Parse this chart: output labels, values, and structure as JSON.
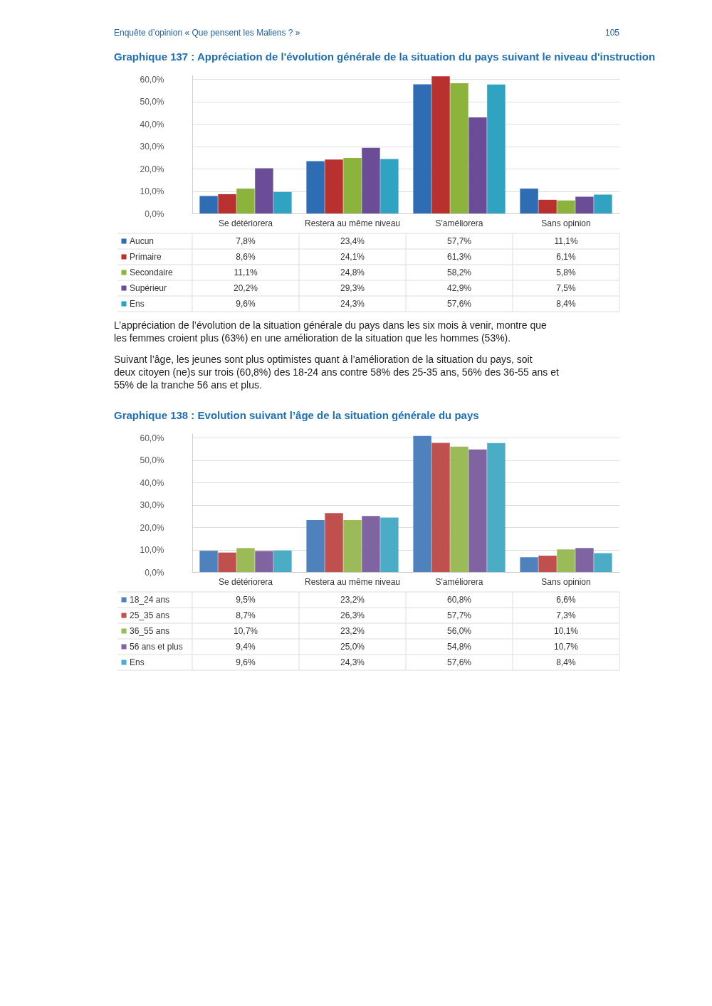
{
  "chart_data": [
    {
      "type": "bar",
      "title": "Graphique 137 : Appréciation de l'évolution générale de la situation du pays suivant le niveau d'instruction",
      "annotations": [
        "Enquête d’opinion « Que pensent les Maliens ? »",
        "105"
      ],
      "categories": [
        "Se détériorera",
        "Restera au même niveau",
        "S'améliorera",
        "Sans opinion"
      ],
      "series": [
        {
          "name": "Aucun",
          "color": "#2e6db4",
          "values": [
            7.8,
            23.4,
            57.7,
            11.1
          ],
          "value_labels": [
            "7,8%",
            "23,4%",
            "57,7%",
            "11,1%"
          ]
        },
        {
          "name": "Primaire",
          "color": "#b8312f",
          "values": [
            8.6,
            24.1,
            61.3,
            6.1
          ],
          "value_labels": [
            "8,6%",
            "24,1%",
            "61,3%",
            "6,1%"
          ]
        },
        {
          "name": "Secondaire",
          "color": "#8cb43c",
          "values": [
            11.1,
            24.8,
            58.2,
            5.8
          ],
          "value_labels": [
            "11,1%",
            "24,8%",
            "58,2%",
            "5,8%"
          ]
        },
        {
          "name": "Supérieur",
          "color": "#6b4c96",
          "values": [
            20.2,
            29.3,
            42.9,
            7.5
          ],
          "value_labels": [
            "20,2%",
            "29,3%",
            "42,9%",
            "7,5%"
          ]
        },
        {
          "name": "Ens",
          "color": "#30a3c2",
          "values": [
            9.6,
            24.3,
            57.6,
            8.4
          ],
          "value_labels": [
            "9,6%",
            "24,3%",
            "57,6%",
            "8,4%"
          ]
        }
      ],
      "ylim": [
        0,
        62
      ],
      "yticks": [
        {
          "value": 0,
          "label": "0,0%"
        },
        {
          "value": 10,
          "label": "10,0%"
        },
        {
          "value": 20,
          "label": "20,0%"
        },
        {
          "value": 30,
          "label": "30,0%"
        },
        {
          "value": 40,
          "label": "40,0%"
        },
        {
          "value": 50,
          "label": "50,0%"
        },
        {
          "value": 60,
          "label": "60,0%"
        }
      ],
      "grid": "y",
      "legend": "bottom"
    },
    {
      "type": "bar",
      "title": "Graphique 138 : Evolution suivant l’âge de la situation générale du pays",
      "annotations": [
        "L’appréciation de l’évolution de la situation générale du pays dans les six mois à venir, montre que les femmes croient plus (63%) en une amélioration de la situation que les hommes (53%).",
        "Suivant l’âge, les jeunes sont plus optimistes quant à l’amélioration de la situation du pays, soit deux citoyen (ne)s sur trois (60,8%) des 18-24 ans contre 58% des 25-35 ans, 56% des 36-55 ans et 55% de la tranche 56 ans et plus."
      ],
      "categories": [
        "Se détériorera",
        "Restera au même niveau",
        "S'améliorera",
        "Sans opinion"
      ],
      "series": [
        {
          "name": "18_24 ans",
          "color": "#4f81bd",
          "values": [
            9.5,
            23.2,
            60.8,
            6.6
          ],
          "value_labels": [
            "9,5%",
            "23,2%",
            "60,8%",
            "6,6%"
          ]
        },
        {
          "name": "25_35 ans",
          "color": "#c0504d",
          "values": [
            8.7,
            26.3,
            57.7,
            7.3
          ],
          "value_labels": [
            "8,7%",
            "26,3%",
            "57,7%",
            "7,3%"
          ]
        },
        {
          "name": "36_55 ans",
          "color": "#9bbb59",
          "values": [
            10.7,
            23.2,
            56.0,
            10.1
          ],
          "value_labels": [
            "10,7%",
            "23,2%",
            "56,0%",
            "10,1%"
          ]
        },
        {
          "name": "56 ans et plus",
          "color": "#8064a2",
          "values": [
            9.4,
            25.0,
            54.8,
            10.7
          ],
          "value_labels": [
            "9,4%",
            "25,0%",
            "54,8%",
            "10,7%"
          ]
        },
        {
          "name": "Ens",
          "color": "#4bacc6",
          "values": [
            9.6,
            24.3,
            57.6,
            8.4
          ],
          "value_labels": [
            "9,6%",
            "24,3%",
            "57,6%",
            "8,4%"
          ]
        }
      ],
      "ylim": [
        0,
        62
      ],
      "yticks": [
        {
          "value": 0,
          "label": "0,0%"
        },
        {
          "value": 10,
          "label": "10,0%"
        },
        {
          "value": 20,
          "label": "20,0%"
        },
        {
          "value": 30,
          "label": "30,0%"
        },
        {
          "value": 40,
          "label": "40,0%"
        },
        {
          "value": 50,
          "label": "50,0%"
        },
        {
          "value": 60,
          "label": "60,0%"
        }
      ],
      "grid": "y",
      "legend": "bottom"
    }
  ]
}
